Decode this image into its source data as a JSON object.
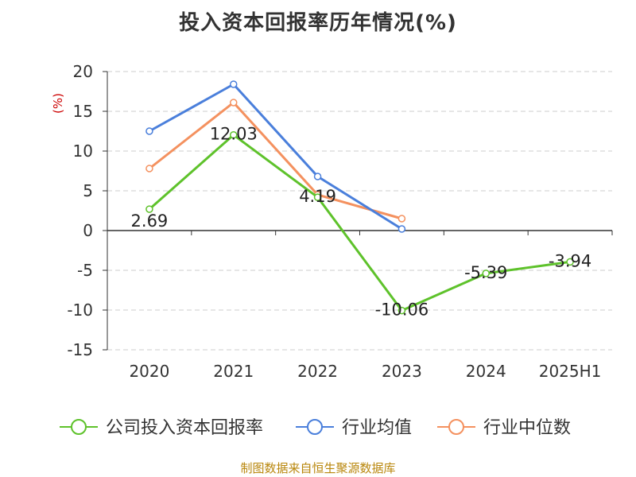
{
  "chart_data": {
    "type": "line",
    "title": "投入资本回报率历年情况(%)",
    "ylabel": "(%)",
    "categories": [
      "2020",
      "2021",
      "2022",
      "2023",
      "2024",
      "2025H1"
    ],
    "ylim": [
      -15,
      20
    ],
    "yticks": [
      20,
      15,
      10,
      5,
      0,
      -5,
      -10,
      -15
    ],
    "grid": true,
    "legend_position": "bottom",
    "series": [
      {
        "name": "公司投入资本回报率",
        "color": "#5ec22b",
        "values": [
          2.69,
          12.03,
          4.19,
          -10.06,
          -5.39,
          -3.94
        ],
        "labels": [
          "2.69",
          "12.03",
          "4.19",
          "-10.06",
          "-5.39",
          "-3.94"
        ]
      },
      {
        "name": "行业均值",
        "color": "#4a7fdb",
        "values": [
          12.5,
          18.4,
          6.8,
          0.2,
          null,
          null
        ]
      },
      {
        "name": "行业中位数",
        "color": "#f4915f",
        "values": [
          7.8,
          16.1,
          4.5,
          1.5,
          null,
          null
        ]
      }
    ]
  },
  "source": "制图数据来自恒生聚源数据库"
}
